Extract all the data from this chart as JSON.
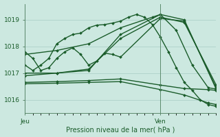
{
  "title": "Pression niveau de la mer( hPa )",
  "bg_color": "#cce8e0",
  "grid_color": "#a8ccc4",
  "line_color": "#1a5c2a",
  "axis_color": "#4a7a5a",
  "text_color": "#1a5c2a",
  "ylim": [
    1015.5,
    1019.6
  ],
  "xlim": [
    0,
    48
  ],
  "yticks": [
    1016,
    1017,
    1018,
    1019
  ],
  "xtick_positions": [
    0,
    34
  ],
  "xtick_labels": [
    "Jeu",
    "Ven"
  ],
  "vline_x": 34,
  "vline_color": "#5a8a6a",
  "series": [
    {
      "x": [
        0,
        2,
        4,
        6,
        8,
        10,
        12,
        14,
        16,
        18,
        20,
        22,
        24,
        26,
        28,
        30,
        32,
        34,
        36,
        38,
        40,
        42,
        44,
        46,
        48
      ],
      "y": [
        1017.3,
        1017.1,
        1017.3,
        1017.55,
        1018.1,
        1018.3,
        1018.45,
        1018.5,
        1018.7,
        1018.8,
        1018.82,
        1018.88,
        1018.95,
        1019.1,
        1019.2,
        1019.1,
        1018.82,
        1018.35,
        1017.8,
        1017.2,
        1016.65,
        1016.35,
        1016.0,
        1015.82,
        1015.75
      ],
      "markersize": 2.0,
      "linewidth": 1.0
    },
    {
      "x": [
        0,
        8,
        16,
        24,
        32,
        34,
        38,
        42,
        46,
        48
      ],
      "y": [
        1017.7,
        1017.85,
        1018.1,
        1018.7,
        1019.1,
        1019.2,
        1018.6,
        1017.3,
        1016.45,
        1016.4
      ],
      "markersize": 2.0,
      "linewidth": 1.0
    },
    {
      "x": [
        0,
        2,
        4,
        6,
        8,
        10,
        12,
        14,
        16,
        18,
        20,
        22,
        24,
        34,
        40,
        48
      ],
      "y": [
        1017.8,
        1017.55,
        1017.1,
        1017.2,
        1017.55,
        1017.8,
        1017.95,
        1017.7,
        1017.3,
        1017.45,
        1017.75,
        1017.7,
        1017.6,
        1019.05,
        1018.95,
        1016.45
      ],
      "markersize": 2.0,
      "linewidth": 1.0
    },
    {
      "x": [
        0,
        8,
        16,
        24,
        34,
        40,
        48
      ],
      "y": [
        1016.9,
        1017.0,
        1017.1,
        1018.45,
        1019.2,
        1019.0,
        1016.4
      ],
      "markersize": 2.0,
      "linewidth": 1.0
    },
    {
      "x": [
        0,
        8,
        16,
        24,
        34,
        40,
        48
      ],
      "y": [
        1017.0,
        1017.0,
        1017.15,
        1018.3,
        1019.1,
        1018.9,
        1016.55
      ],
      "markersize": 2.0,
      "linewidth": 1.0
    },
    {
      "x": [
        0,
        8,
        16,
        24,
        34,
        40,
        46,
        48
      ],
      "y": [
        1016.65,
        1016.68,
        1016.72,
        1016.78,
        1016.55,
        1016.42,
        1016.38,
        1016.35
      ],
      "markersize": 2.0,
      "linewidth": 1.0
    },
    {
      "x": [
        0,
        8,
        16,
        24,
        34,
        40,
        46,
        48
      ],
      "y": [
        1016.6,
        1016.62,
        1016.65,
        1016.68,
        1016.38,
        1016.18,
        1015.88,
        1015.82
      ],
      "markersize": 2.0,
      "linewidth": 1.0
    }
  ]
}
